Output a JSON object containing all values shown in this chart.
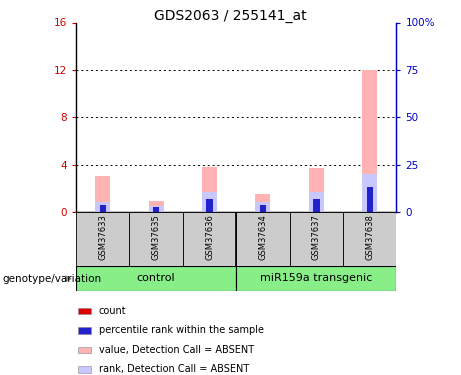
{
  "title": "GDS2063 / 255141_at",
  "samples": [
    "GSM37633",
    "GSM37635",
    "GSM37636",
    "GSM37634",
    "GSM37637",
    "GSM37638"
  ],
  "value_absent": [
    3.0,
    0.9,
    3.8,
    1.5,
    3.7,
    12.0
  ],
  "rank_absent": [
    0.8,
    0.5,
    1.7,
    0.8,
    1.7,
    3.2
  ],
  "count_red": [
    0.18,
    0.14,
    0.18,
    0.14,
    0.18,
    0.18
  ],
  "rank_blue": [
    0.55,
    0.38,
    1.1,
    0.55,
    1.1,
    2.1
  ],
  "ylim_left": [
    0,
    16
  ],
  "ylim_right": [
    0,
    100
  ],
  "yticks_left": [
    0,
    4,
    8,
    12,
    16
  ],
  "yticks_right": [
    0,
    25,
    50,
    75,
    100
  ],
  "yticklabels_right": [
    "0",
    "25",
    "50",
    "75",
    "100%"
  ],
  "yticklabels_left": [
    "0",
    "4",
    "8",
    "12",
    "16"
  ],
  "left_axis_color": "#cc0000",
  "right_axis_color": "#0000cc",
  "bar_color_absent_value": "#ffb3b3",
  "bar_color_absent_rank": "#c8c8ff",
  "bar_color_count": "#dd0000",
  "bar_color_rank": "#2222cc",
  "group_box_color": "#88ee88",
  "sample_box_color": "#cccccc",
  "control_group": "control",
  "mir_group": "miR159a transgenic",
  "legend_items": [
    {
      "label": "count",
      "color": "#dd0000"
    },
    {
      "label": "percentile rank within the sample",
      "color": "#2222cc"
    },
    {
      "label": "value, Detection Call = ABSENT",
      "color": "#ffb3b3"
    },
    {
      "label": "rank, Detection Call = ABSENT",
      "color": "#c8c8ff"
    }
  ],
  "genotype_label": "genotype/variation"
}
